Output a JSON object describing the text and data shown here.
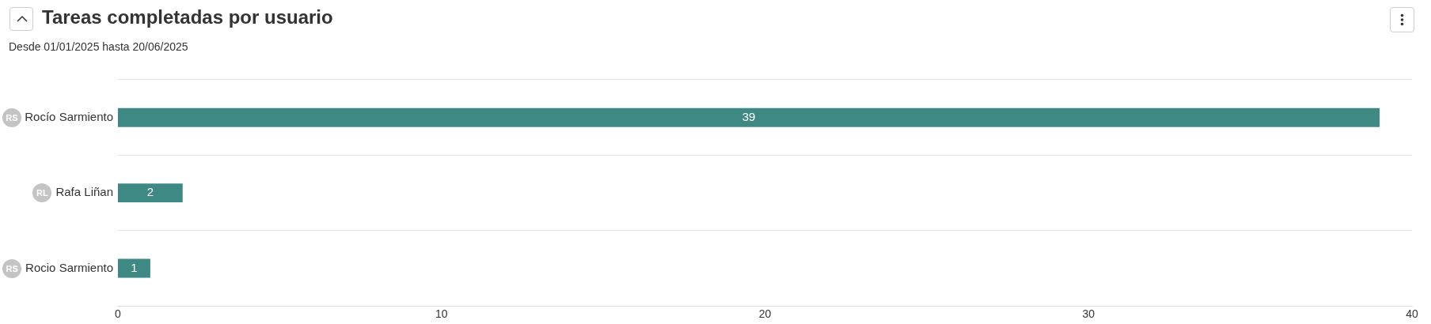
{
  "chart_data": {
    "type": "bar",
    "orientation": "horizontal",
    "title": "Tareas completadas por usuario",
    "subtitle": "Desde 01/01/2025 hasta 20/06/2025",
    "categories": [
      "Rocío Sarmiento",
      "Rafa Liñan",
      "Rocio Sarmiento"
    ],
    "values": [
      39,
      2,
      1
    ],
    "color": "#3f8984",
    "xlim": [
      0,
      40
    ],
    "xticks": [
      0,
      10,
      20,
      30,
      40
    ],
    "grid": "y",
    "data_labels": true,
    "legend": false,
    "annotations": [
      "RS",
      "RL",
      "RS"
    ]
  }
}
